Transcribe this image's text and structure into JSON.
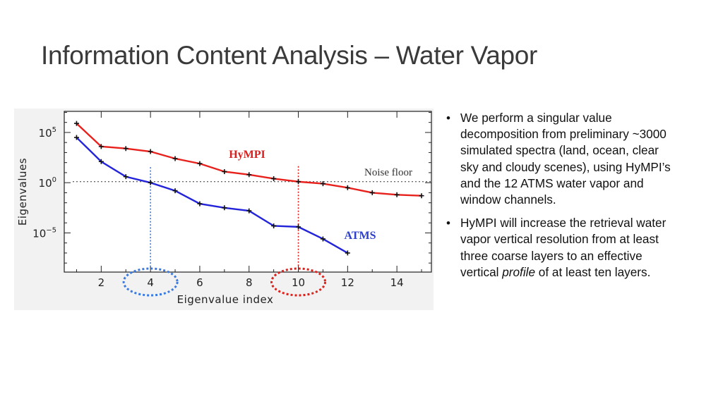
{
  "slide": {
    "title": "Information Content Analysis – Water Vapor"
  },
  "bullets": [
    {
      "text": "We perform a singular value decomposition from preliminary ~3000 simulated spectra (land, ocean, clear sky and cloudy scenes), using HyMPI’s and the 12 ATMS water vapor and window channels."
    },
    {
      "before": "HyMPI will increase the retrieval water vapor vertical resolution from at least three coarse layers to an effective vertical ",
      "emphasis": "profile",
      "after": " of at least ten layers."
    }
  ],
  "bullet_glyph": "•",
  "chart_data": {
    "type": "line",
    "xlabel": "Eigenvalue index",
    "ylabel": "Eigenvalues",
    "x_ticks": [
      2,
      4,
      6,
      8,
      10,
      12,
      14
    ],
    "y_ticks": [
      {
        "value": 5,
        "label": "10",
        "exp": "5"
      },
      {
        "value": 0,
        "label": "10",
        "exp": "0"
      },
      {
        "value": -5,
        "label": "10",
        "exp": "−5"
      }
    ],
    "xlim": [
      0.5,
      15.4
    ],
    "ylim_log10": [
      -8.9,
      7.1
    ],
    "y_scale": "log",
    "series": [
      {
        "name": "HyMPI",
        "color": "#e8211d",
        "x": [
          1,
          2,
          3,
          4,
          5,
          6,
          7,
          8,
          9,
          10,
          11,
          12,
          13,
          14,
          15
        ],
        "log10_y": [
          5.9,
          3.6,
          3.4,
          3.1,
          2.4,
          1.9,
          1.1,
          0.8,
          0.4,
          0.1,
          -0.1,
          -0.5,
          -1.0,
          -1.2,
          -1.3
        ]
      },
      {
        "name": "ATMS",
        "color": "#2324d9",
        "x": [
          1,
          2,
          3,
          4,
          5,
          6,
          7,
          8,
          9,
          10,
          11,
          12
        ],
        "log10_y": [
          4.5,
          2.1,
          0.6,
          0.0,
          -0.8,
          -2.1,
          -2.5,
          -2.8,
          -4.3,
          -4.4,
          -5.6,
          -7.0
        ]
      }
    ],
    "noise_floor": {
      "label": "Noise floor",
      "log10_y": 0.1
    },
    "markers": [
      {
        "x": 4,
        "color": "#3b7be0",
        "series": "ATMS"
      },
      {
        "x": 10,
        "color": "#e0201b",
        "series": "HyMPI"
      }
    ],
    "annotations": [
      {
        "text": "HyMPI",
        "color": "#d62020"
      },
      {
        "text": "ATMS",
        "color": "#2d3fc9"
      }
    ],
    "grid": false
  }
}
